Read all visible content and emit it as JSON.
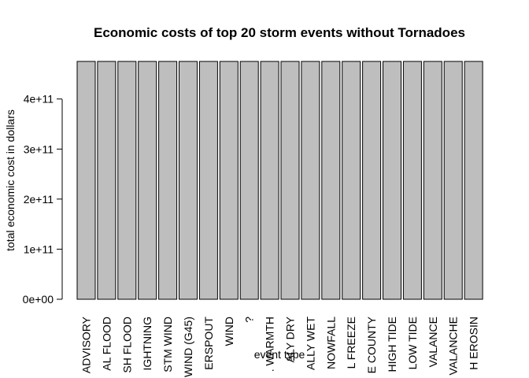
{
  "chart_data": {
    "type": "bar",
    "title": "Economic costs of top 20 storm events without Tornadoes",
    "xlabel": "event type",
    "ylabel": "total economic cost in dollars",
    "categories": [
      "ADVISORY",
      "AL FLOOD",
      "SH FLOOD",
      "IGHTNING",
      "STM WIND",
      "WIND (G45)",
      "ERSPOUT",
      "WIND",
      "?",
      ". WARMTH",
      "ALY DRY",
      "ALLY WET",
      "NOWFALL",
      "L FREEZE",
      "E COUNTY",
      "HIGH TIDE",
      "LOW TIDE",
      "VALANCE",
      "VALANCHE",
      "H EROSIN"
    ],
    "values": [
      475000000000,
      475000000000,
      475000000000,
      475000000000,
      475000000000,
      475000000000,
      475000000000,
      475000000000,
      475000000000,
      475000000000,
      475000000000,
      475000000000,
      475000000000,
      475000000000,
      475000000000,
      475000000000,
      475000000000,
      475000000000,
      475000000000,
      475000000000
    ],
    "yticks": [
      0,
      100000000000,
      200000000000,
      300000000000,
      400000000000
    ],
    "ytick_labels": [
      "0e+00",
      "1e+11",
      "2e+11",
      "3e+11",
      "4e+11"
    ],
    "ylim": [
      0,
      475000000000
    ],
    "bar_color": "#bebebe",
    "grid": false,
    "legend": "none"
  }
}
